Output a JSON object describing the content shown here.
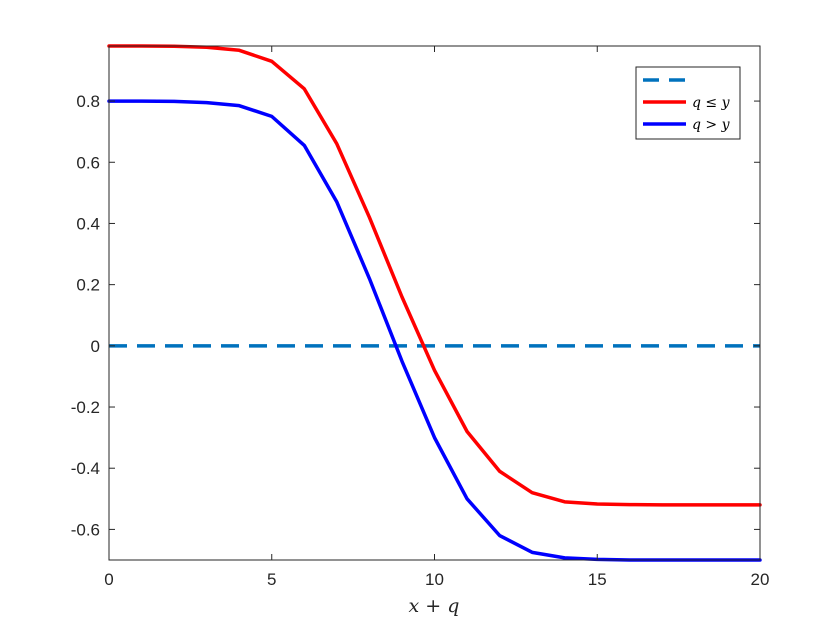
{
  "chart_data": {
    "type": "line",
    "title": "",
    "xlabel": "x + q",
    "ylabel": "",
    "xlim": [
      0,
      20
    ],
    "ylim": [
      -0.7,
      0.98
    ],
    "xticks": [
      0,
      5,
      10,
      15,
      20
    ],
    "xtick_labels": [
      "0",
      "5",
      "10",
      "15",
      "20"
    ],
    "yticks": [
      -0.6,
      -0.4,
      -0.2,
      0,
      0.2,
      0.4,
      0.6,
      0.8
    ],
    "ytick_labels": [
      "-0.6",
      "-0.4",
      "-0.2",
      "0",
      "0.2",
      "0.4",
      "0.6",
      "0.8"
    ],
    "grid": false,
    "legend_position": "top-right",
    "series": [
      {
        "name": "",
        "style": "dashed",
        "color": "#0072BD",
        "x": [
          0,
          20
        ],
        "y": [
          0,
          0
        ]
      },
      {
        "name": "q ≤ y",
        "style": "solid",
        "color": "#FF0000",
        "x": [
          0,
          1,
          2,
          3,
          4,
          5,
          6,
          7,
          8,
          9,
          10,
          11,
          12,
          13,
          14,
          15,
          16,
          17,
          18,
          19,
          20
        ],
        "y": [
          0.98,
          0.98,
          0.979,
          0.976,
          0.966,
          0.93,
          0.84,
          0.66,
          0.42,
          0.16,
          -0.08,
          -0.28,
          -0.41,
          -0.48,
          -0.51,
          -0.517,
          -0.519,
          -0.52,
          -0.52,
          -0.52,
          -0.52
        ]
      },
      {
        "name": "q > y",
        "style": "solid",
        "color": "#0000FF",
        "x": [
          0,
          1,
          2,
          3,
          4,
          5,
          6,
          7,
          8,
          9,
          10,
          11,
          12,
          13,
          14,
          15,
          16,
          17,
          18,
          19,
          20
        ],
        "y": [
          0.8,
          0.8,
          0.799,
          0.795,
          0.785,
          0.75,
          0.655,
          0.47,
          0.22,
          -0.05,
          -0.3,
          -0.5,
          -0.62,
          -0.675,
          -0.693,
          -0.698,
          -0.7,
          -0.7,
          -0.7,
          -0.7,
          -0.7
        ]
      }
    ]
  }
}
